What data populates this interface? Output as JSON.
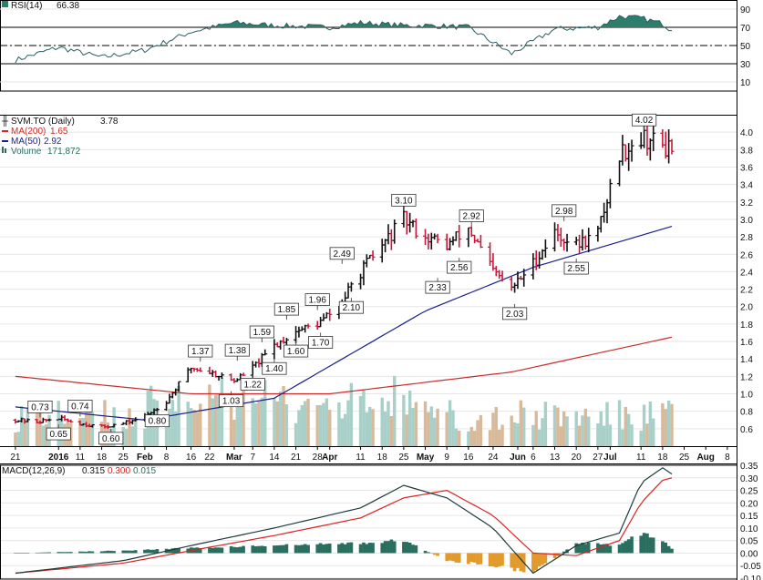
{
  "colors": {
    "up": "#111111",
    "down": "#c8173c",
    "ma200": "#cc2a2a",
    "ma50": "#1a1f8a",
    "rsi": "#2a6060",
    "rsi_fill": "#2e7e6e",
    "vol_up": "#a8cfc8",
    "vol_down": "#d8b99a",
    "macd": "#1e3b3b",
    "signal": "#dd2222",
    "hist_pos": "#2a6e60",
    "hist_neg": "#e39a2d",
    "grid": "#e6e6e6"
  },
  "header": {
    "rsi": {
      "label": "RSI(14)",
      "value": "66.38"
    },
    "price": {
      "title": "SVM.TO (Daily)",
      "last": "3.78",
      "ma200_label": "MA(200)",
      "ma200_value": "1.65",
      "ma50_label": "MA(50)",
      "ma50_value": "2.92",
      "vol_label": "Volume",
      "vol_value": "171,872"
    },
    "macd": {
      "label": "MACD(12,26,9)",
      "macd_value": "0.315",
      "signal_value": "0.300",
      "hist_value": "0.015"
    }
  },
  "chart_data": [
    {
      "type": "line",
      "panel": "rsi",
      "title": "RSI(14)",
      "ylim": [
        0,
        100
      ],
      "yticks": [
        "90",
        "70",
        "50",
        "30",
        "10"
      ],
      "reference_lines": [
        70,
        50,
        30
      ],
      "x": [
        "2015-12-21",
        "2016-01-04",
        "2016-01-18",
        "2016-02-01",
        "2016-02-16",
        "2016-03-01",
        "2016-03-14",
        "2016-04-01",
        "2016-04-11",
        "2016-04-25",
        "2016-05-02",
        "2016-05-16",
        "2016-05-30",
        "2016-06-13",
        "2016-06-27",
        "2016-07-04",
        "2016-07-11",
        "2016-07-18",
        "2016-07-21"
      ],
      "values": [
        34,
        48,
        37,
        45,
        65,
        75,
        72,
        70,
        75,
        72,
        72,
        70,
        41,
        68,
        70,
        82,
        80,
        74,
        66.38
      ]
    },
    {
      "type": "bar",
      "panel": "price",
      "title": "SVM.TO (Daily)",
      "ylim": [
        0.4,
        4.2
      ],
      "yticks": [
        "4.0",
        "3.8",
        "3.6",
        "3.4",
        "3.2",
        "3.0",
        "2.8",
        "2.6",
        "2.4",
        "2.2",
        "2.0",
        "1.8",
        "1.6",
        "1.4",
        "1.2",
        "1.0",
        "0.8",
        "0.6"
      ],
      "x_tick_labels": [
        "21",
        "2016",
        "11",
        "18",
        "25",
        "Feb",
        "8",
        "16",
        "22",
        "Mar",
        "7",
        "14",
        "21",
        "28",
        "Apr",
        "11",
        "18",
        "25",
        "May",
        "9",
        "16",
        "24",
        "Jun",
        "6",
        "13",
        "20",
        "27",
        "Jul",
        "11",
        "18",
        "25",
        "Aug",
        "8"
      ],
      "series": [
        {
          "name": "SVM.TO",
          "x": [
            "2015-12-21",
            "2015-12-28",
            "2016-01-04",
            "2016-01-11",
            "2016-01-18",
            "2016-01-25",
            "2016-02-01",
            "2016-02-08",
            "2016-02-16",
            "2016-02-22",
            "2016-03-01",
            "2016-03-07",
            "2016-03-14",
            "2016-03-21",
            "2016-03-28",
            "2016-04-04",
            "2016-04-11",
            "2016-04-18",
            "2016-04-25",
            "2016-05-02",
            "2016-05-09",
            "2016-05-16",
            "2016-05-24",
            "2016-05-30",
            "2016-06-06",
            "2016-06-13",
            "2016-06-20",
            "2016-06-27",
            "2016-07-04",
            "2016-07-11",
            "2016-07-18",
            "2016-07-21"
          ],
          "close": [
            0.7,
            0.68,
            0.72,
            0.66,
            0.62,
            0.66,
            0.74,
            0.92,
            1.3,
            1.25,
            1.15,
            1.3,
            1.55,
            1.72,
            1.8,
            2.0,
            2.4,
            2.7,
            3.0,
            2.8,
            2.7,
            2.9,
            2.4,
            2.2,
            2.5,
            2.85,
            2.7,
            2.85,
            3.75,
            3.95,
            3.85,
            3.78
          ]
        },
        {
          "name": "MA(200)",
          "x": [
            "2015-12-21",
            "2016-02-16",
            "2016-04-01",
            "2016-05-30",
            "2016-07-21"
          ],
          "values": [
            1.2,
            1.0,
            1.0,
            1.25,
            1.65
          ]
        },
        {
          "name": "MA(50)",
          "x": [
            "2015-12-21",
            "2016-02-01",
            "2016-03-14",
            "2016-05-02",
            "2016-06-06",
            "2016-07-21"
          ],
          "values": [
            0.85,
            0.7,
            0.95,
            1.95,
            2.45,
            2.92
          ]
        }
      ],
      "annotations": [
        {
          "date": "2015-12-29",
          "value": 0.73,
          "label": "0.73"
        },
        {
          "date": "2016-01-04",
          "value": 0.65,
          "label": "0.65"
        },
        {
          "date": "2016-01-11",
          "value": 0.74,
          "label": "0.74"
        },
        {
          "date": "2016-01-21",
          "value": 0.6,
          "label": "0.60"
        },
        {
          "date": "2016-02-05",
          "value": 0.8,
          "label": "0.80"
        },
        {
          "date": "2016-02-19",
          "value": 1.37,
          "label": "1.37"
        },
        {
          "date": "2016-02-29",
          "value": 1.03,
          "label": "1.03"
        },
        {
          "date": "2016-03-02",
          "value": 1.38,
          "label": "1.38"
        },
        {
          "date": "2016-03-07",
          "value": 1.22,
          "label": "1.22"
        },
        {
          "date": "2016-03-10",
          "value": 1.59,
          "label": "1.59"
        },
        {
          "date": "2016-03-14",
          "value": 1.4,
          "label": "1.40"
        },
        {
          "date": "2016-03-18",
          "value": 1.85,
          "label": "1.85"
        },
        {
          "date": "2016-03-21",
          "value": 1.6,
          "label": "1.60"
        },
        {
          "date": "2016-03-28",
          "value": 1.96,
          "label": "1.96"
        },
        {
          "date": "2016-03-29",
          "value": 1.7,
          "label": "1.70"
        },
        {
          "date": "2016-04-05",
          "value": 2.49,
          "label": "2.49"
        },
        {
          "date": "2016-04-08",
          "value": 2.1,
          "label": "2.10"
        },
        {
          "date": "2016-04-25",
          "value": 3.1,
          "label": "3.10"
        },
        {
          "date": "2016-05-06",
          "value": 2.33,
          "label": "2.33"
        },
        {
          "date": "2016-05-13",
          "value": 2.56,
          "label": "2.56"
        },
        {
          "date": "2016-05-17",
          "value": 2.92,
          "label": "2.92"
        },
        {
          "date": "2016-05-31",
          "value": 2.03,
          "label": "2.03"
        },
        {
          "date": "2016-06-16",
          "value": 2.98,
          "label": "2.98"
        },
        {
          "date": "2016-06-20",
          "value": 2.55,
          "label": "2.55"
        },
        {
          "date": "2016-07-12",
          "value": 4.02,
          "label": "4.02"
        }
      ]
    },
    {
      "type": "line",
      "panel": "macd",
      "title": "MACD(12,26,9)",
      "ylim": [
        -0.1,
        0.35
      ],
      "yticks": [
        "0.35",
        "0.30",
        "0.25",
        "0.20",
        "0.15",
        "0.10",
        "0.05",
        "0.00",
        "-0.05",
        "-0.10"
      ],
      "x": [
        "2015-12-21",
        "2016-01-25",
        "2016-02-16",
        "2016-03-14",
        "2016-04-11",
        "2016-04-25",
        "2016-05-09",
        "2016-05-24",
        "2016-06-06",
        "2016-06-20",
        "2016-07-04",
        "2016-07-11",
        "2016-07-18",
        "2016-07-21"
      ],
      "series": [
        {
          "name": "MACD",
          "values": [
            -0.08,
            -0.03,
            0.03,
            0.1,
            0.18,
            0.27,
            0.22,
            0.1,
            -0.08,
            0.03,
            0.08,
            0.28,
            0.34,
            0.315
          ]
        },
        {
          "name": "Signal",
          "values": [
            -0.08,
            -0.04,
            0.01,
            0.07,
            0.14,
            0.22,
            0.25,
            0.15,
            0.0,
            -0.01,
            0.05,
            0.2,
            0.29,
            0.3
          ]
        },
        {
          "name": "Histogram",
          "values": [
            0.0,
            0.01,
            0.02,
            0.03,
            0.04,
            0.05,
            -0.03,
            -0.05,
            -0.08,
            0.04,
            0.03,
            0.08,
            0.05,
            0.015
          ]
        }
      ]
    }
  ]
}
